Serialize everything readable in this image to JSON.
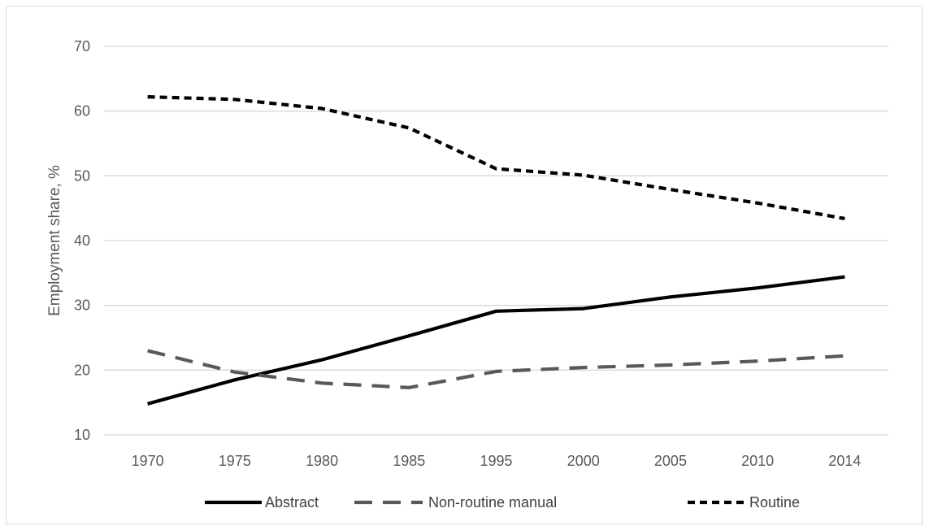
{
  "chart_data": {
    "type": "line",
    "title": "",
    "xlabel": "",
    "ylabel": "Employment share, %",
    "categories": [
      "1970",
      "1975",
      "1980",
      "1985",
      "1995",
      "2000",
      "2005",
      "2010",
      "2014"
    ],
    "yticks": [
      "10",
      "20",
      "30",
      "40",
      "50",
      "60",
      "70"
    ],
    "ylim": [
      10,
      70
    ],
    "grid": true,
    "legend_position": "bottom",
    "series": [
      {
        "name": "Abstract",
        "values": [
          14.8,
          18.5,
          21.6,
          25.3,
          29.1,
          29.5,
          31.3,
          32.7,
          34.4
        ],
        "color": "#000000",
        "dash": "solid"
      },
      {
        "name": "Non-routine manual",
        "values": [
          23.0,
          19.7,
          18.0,
          17.3,
          19.8,
          20.4,
          20.8,
          21.4,
          22.2
        ],
        "color": "#595959",
        "dash": "long-dash"
      },
      {
        "name": "Routine",
        "values": [
          62.2,
          61.8,
          60.4,
          57.4,
          51.1,
          50.1,
          47.9,
          45.8,
          43.4
        ],
        "color": "#000000",
        "dash": "short-dash"
      }
    ]
  }
}
